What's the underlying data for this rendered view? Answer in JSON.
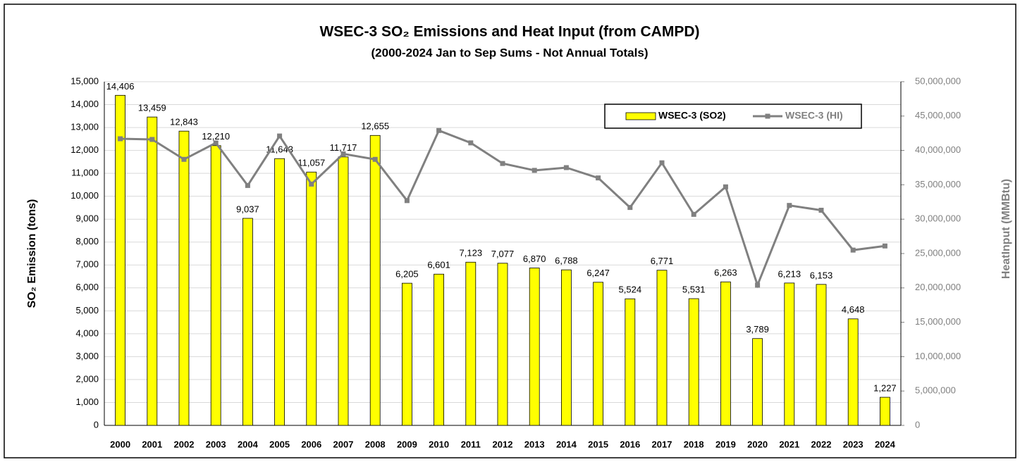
{
  "chart_data": {
    "type": "bar-line",
    "title": "WSEC-3 SO₂ Emissions and Heat Input (from CAMPD)",
    "subtitle": "(2000-2024 Jan to Sep Sums - Not Annual Totals)",
    "y_label": "SO₂ Emission (tons)",
    "y2_label": "HeatInput (MMBtu)",
    "categories": [
      "2000",
      "2001",
      "2002",
      "2003",
      "2004",
      "2005",
      "2006",
      "2007",
      "2008",
      "2009",
      "2010",
      "2011",
      "2012",
      "2013",
      "2014",
      "2015",
      "2016",
      "2017",
      "2018",
      "2019",
      "2020",
      "2021",
      "2022",
      "2023",
      "2024"
    ],
    "series": [
      {
        "name": "WSEC-3 (SO2)",
        "type": "bar",
        "color": "#ffff00",
        "values": [
          14406,
          13459,
          12843,
          12210,
          9037,
          11643,
          11057,
          11717,
          12655,
          6205,
          6601,
          7123,
          7077,
          6870,
          6788,
          6247,
          5524,
          6771,
          5531,
          6263,
          3789,
          6213,
          6153,
          4648,
          1227
        ],
        "value_labels": [
          "14,406",
          "13,459",
          "12,843",
          "12,210",
          "9,037",
          "11,643",
          "11,057",
          "11,717",
          "12,655",
          "6,205",
          "6,601",
          "7,123",
          "7,077",
          "6,870",
          "6,788",
          "6,247",
          "5,524",
          "6,771",
          "5,531",
          "6,263",
          "3,789",
          "6,213",
          "6,153",
          "4,648",
          "1,227"
        ]
      },
      {
        "name": "WSEC-3 (HI)",
        "type": "line",
        "color": "#808080",
        "axis": "y2",
        "values": [
          41700000,
          41600000,
          38700000,
          41100000,
          34900000,
          42100000,
          35100000,
          39500000,
          38700000,
          32700000,
          42900000,
          41100000,
          38100000,
          37100000,
          37500000,
          36000000,
          31700000,
          38200000,
          30700000,
          34700000,
          20400000,
          32000000,
          31300000,
          25500000,
          26100000
        ]
      }
    ],
    "ylim": [
      0,
      15000
    ],
    "yticks": [
      0,
      {
        "value": 1000,
        "label": "1,000"
      },
      {
        "value": 2000,
        "label": "2,000"
      },
      {
        "value": 3000,
        "label": "3,000"
      },
      {
        "value": 4000,
        "label": "4,000"
      },
      {
        "value": 5000,
        "label": "5,000"
      },
      {
        "value": 6000,
        "label": "6,000"
      },
      {
        "value": 7000,
        "label": "7,000"
      },
      {
        "value": 8000,
        "label": "8,000"
      },
      {
        "value": 9000,
        "label": "9,000"
      },
      {
        "value": 10000,
        "label": "10,000"
      },
      {
        "value": 11000,
        "label": "11,000"
      },
      {
        "value": 12000,
        "label": "12,000"
      },
      {
        "value": 13000,
        "label": "13,000"
      },
      {
        "value": 14000,
        "label": "14,000"
      },
      {
        "value": 15000,
        "label": "15,000"
      }
    ],
    "y2lim": [
      0,
      50000000
    ],
    "y2ticks": [
      0,
      {
        "value": 5000000,
        "label": "5,000,000"
      },
      {
        "value": 10000000,
        "label": "10,000,000"
      },
      {
        "value": 15000000,
        "label": "15,000,000"
      },
      {
        "value": 20000000,
        "label": "20,000,000"
      },
      {
        "value": 25000000,
        "label": "25,000,000"
      },
      {
        "value": 30000000,
        "label": "30,000,000"
      },
      {
        "value": 35000000,
        "label": "35,000,000"
      },
      {
        "value": 40000000,
        "label": "40,000,000"
      },
      {
        "value": 45000000,
        "label": "45,000,000"
      },
      {
        "value": 50000000,
        "label": "50,000,000"
      }
    ],
    "grid": true,
    "legend": "top-right"
  }
}
